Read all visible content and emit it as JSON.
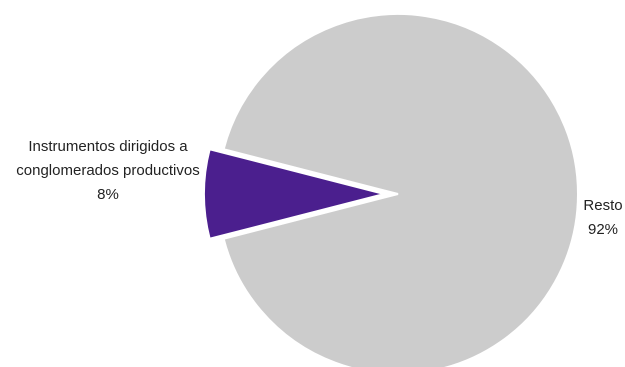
{
  "chart_data": {
    "type": "pie",
    "title": "",
    "slices": [
      {
        "label_lines": [
          "Instrumentos dirigidos a",
          "conglomerados productivos"
        ],
        "value_label": "8%",
        "value": 8,
        "color": "#4b1f8e",
        "exploded": true
      },
      {
        "label_lines": [
          "Resto"
        ],
        "value_label": "92%",
        "value": 92,
        "color": "#cccccc",
        "exploded": false
      }
    ]
  }
}
